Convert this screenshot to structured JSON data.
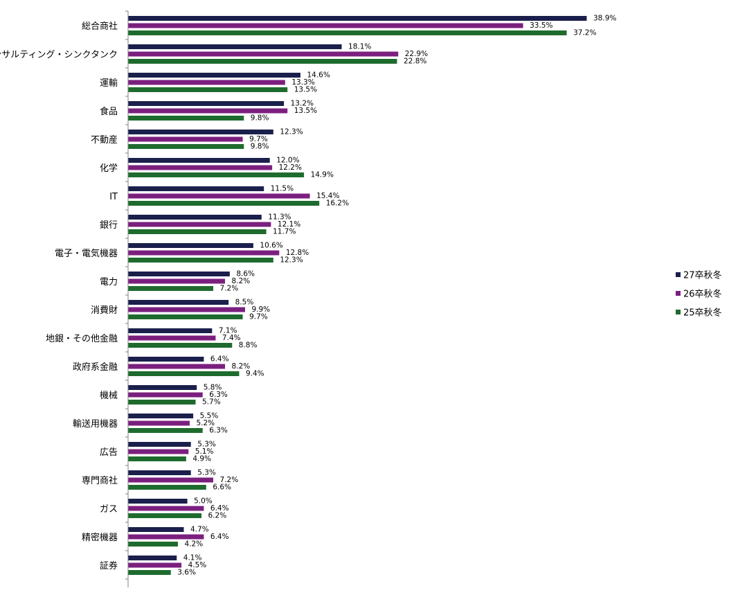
{
  "chart_data": {
    "type": "bar",
    "orientation": "horizontal",
    "categories": [
      "総合商社",
      "コンサルティング・シンクタンク",
      "運輸",
      "食品",
      "不動産",
      "化学",
      "IT",
      "銀行",
      "電子・電気機器",
      "電力",
      "消費財",
      "地銀・その他金融",
      "政府系金融",
      "機械",
      "輸送用機器",
      "広告",
      "専門商社",
      "ガス",
      "精密機器",
      "証券"
    ],
    "series": [
      {
        "name": "27卒秋冬",
        "color": "#1b1f4b",
        "values": [
          38.9,
          18.1,
          14.6,
          13.2,
          12.3,
          12.0,
          11.5,
          11.3,
          10.6,
          8.6,
          8.5,
          7.1,
          6.4,
          5.8,
          5.5,
          5.3,
          5.3,
          5.0,
          4.7,
          4.1
        ]
      },
      {
        "name": "26卒秋冬",
        "color": "#7b1f7f",
        "values": [
          33.5,
          22.9,
          13.3,
          13.5,
          9.7,
          12.2,
          15.4,
          12.1,
          12.8,
          8.2,
          9.9,
          7.4,
          8.2,
          6.3,
          5.2,
          5.1,
          7.2,
          6.4,
          6.4,
          4.5
        ]
      },
      {
        "name": "25卒秋冬",
        "color": "#1e6b2e",
        "values": [
          37.2,
          22.8,
          13.5,
          9.8,
          9.8,
          14.9,
          16.2,
          11.7,
          12.3,
          7.2,
          9.7,
          8.8,
          9.4,
          5.7,
          6.3,
          4.9,
          6.6,
          6.2,
          4.2,
          3.6
        ]
      }
    ],
    "value_format": "{v}%",
    "xlim": [
      0,
      40
    ],
    "grid": false,
    "legend_position": "right",
    "title": "",
    "xlabel": "",
    "ylabel": ""
  }
}
